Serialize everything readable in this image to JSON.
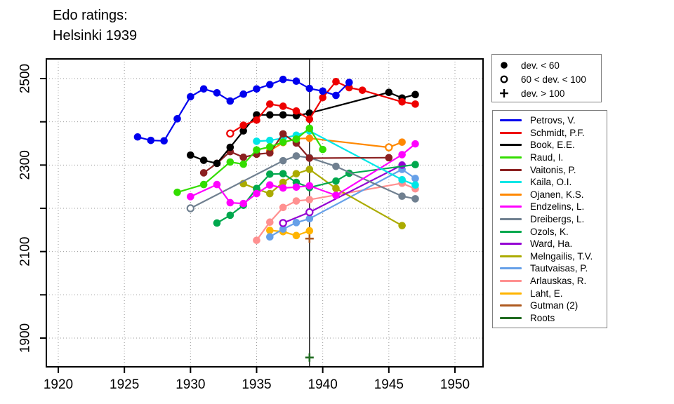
{
  "title": {
    "line1": "Edo ratings:",
    "line2": "Helsinki 1939"
  },
  "marker_legend": {
    "items": [
      {
        "marker": "filled-circle",
        "label": "dev. < 60"
      },
      {
        "marker": "open-circle",
        "label": "60 < dev. < 100"
      },
      {
        "marker": "plus",
        "label": "dev. > 100"
      }
    ]
  },
  "chart_data": {
    "type": "line",
    "title": "Edo ratings: Helsinki 1939",
    "xlabel": "",
    "ylabel": "",
    "xlim": [
      1919,
      1952
    ],
    "ylim": [
      1830,
      2545
    ],
    "x_ticks": [
      1920,
      1925,
      1930,
      1935,
      1940,
      1945,
      1950
    ],
    "y_ticks_all": [
      1900,
      2000,
      2100,
      2200,
      2300,
      2400,
      2500
    ],
    "y_ticks_labeled": [
      1900,
      2100,
      2300,
      2500
    ],
    "grid": true,
    "grid_color": "#999999",
    "axis_color": "#000000",
    "reference_line_x": 1939,
    "legend_position": "right",
    "point_format": [
      "year",
      "rating",
      "marker: f=filled (dev.<60), o=open (60<dev.<100), p=plus (dev.>100); default f"
    ],
    "series": [
      {
        "name": "Petrovs, V.",
        "color": "#0000EE",
        "points": [
          [
            1926,
            2365
          ],
          [
            1927,
            2357
          ],
          [
            1928,
            2356
          ],
          [
            1929,
            2407
          ],
          [
            1930,
            2458
          ],
          [
            1931,
            2476
          ],
          [
            1932,
            2467
          ],
          [
            1933,
            2448
          ],
          [
            1934,
            2464
          ],
          [
            1935,
            2476
          ],
          [
            1936,
            2486
          ],
          [
            1937,
            2498
          ],
          [
            1938,
            2494
          ],
          [
            1939,
            2477
          ],
          [
            1940,
            2471
          ],
          [
            1941,
            2461
          ],
          [
            1942,
            2491
          ]
        ]
      },
      {
        "name": "Schmidt, P.F.",
        "color": "#EE0000",
        "points": [
          [
            1933,
            2373,
            "o"
          ],
          [
            1934,
            2392
          ],
          [
            1935,
            2404
          ],
          [
            1936,
            2441
          ],
          [
            1937,
            2436
          ],
          [
            1938,
            2425
          ],
          [
            1939,
            2406
          ],
          [
            1940,
            2456
          ],
          [
            1941,
            2493
          ],
          [
            1942,
            2479
          ],
          [
            1943,
            2473
          ],
          [
            1946,
            2446
          ],
          [
            1947,
            2441
          ]
        ]
      },
      {
        "name": "Book, E.E.",
        "color": "#000000",
        "points": [
          [
            1930,
            2323
          ],
          [
            1931,
            2311
          ],
          [
            1932,
            2304
          ],
          [
            1933,
            2341
          ],
          [
            1934,
            2379
          ],
          [
            1935,
            2416
          ],
          [
            1936,
            2416
          ],
          [
            1937,
            2416
          ],
          [
            1938,
            2414
          ],
          [
            1939,
            2420
          ],
          [
            1945,
            2468
          ],
          [
            1946,
            2455
          ],
          [
            1947,
            2463
          ]
        ]
      },
      {
        "name": "Raud, I.",
        "color": "#33DD00",
        "points": [
          [
            1929,
            2237
          ],
          [
            1931,
            2255
          ],
          [
            1933,
            2307
          ],
          [
            1934,
            2302
          ],
          [
            1935,
            2335
          ],
          [
            1936,
            2342
          ],
          [
            1937,
            2353
          ],
          [
            1938,
            2360
          ],
          [
            1939,
            2385
          ],
          [
            1940,
            2336
          ]
        ]
      },
      {
        "name": "Vaitonis, P.",
        "color": "#8B2020",
        "points": [
          [
            1931,
            2282
          ],
          [
            1932,
            2304
          ],
          [
            1933,
            2331
          ],
          [
            1934,
            2318
          ],
          [
            1935,
            2325
          ],
          [
            1936,
            2328
          ],
          [
            1937,
            2372
          ],
          [
            1938,
            2351
          ],
          [
            1939,
            2316
          ],
          [
            1945,
            2317
          ]
        ]
      },
      {
        "name": "Kaila, O.I.",
        "color": "#00E6E6",
        "points": [
          [
            1935,
            2355
          ],
          [
            1936,
            2357
          ],
          [
            1937,
            2362
          ],
          [
            1938,
            2369
          ],
          [
            1939,
            2379
          ],
          [
            1946,
            2266
          ],
          [
            1947,
            2254
          ]
        ]
      },
      {
        "name": "Ojanen, K.S.",
        "color": "#FF8800",
        "points": [
          [
            1936,
            2333
          ],
          [
            1937,
            2352
          ],
          [
            1938,
            2361
          ],
          [
            1939,
            2362
          ],
          [
            1945,
            2341,
            "o"
          ],
          [
            1946,
            2353
          ]
        ]
      },
      {
        "name": "Endzelins, L.",
        "color": "#FF00FF",
        "points": [
          [
            1930,
            2227
          ],
          [
            1932,
            2255
          ],
          [
            1933,
            2213
          ],
          [
            1934,
            2211
          ],
          [
            1935,
            2234
          ],
          [
            1936,
            2254
          ],
          [
            1937,
            2247
          ],
          [
            1938,
            2249
          ],
          [
            1939,
            2252
          ],
          [
            1941,
            2230
          ],
          [
            1946,
            2324
          ],
          [
            1947,
            2349
          ]
        ]
      },
      {
        "name": "Dreibergs, L.",
        "color": "#708090",
        "points": [
          [
            1930,
            2200,
            "o"
          ],
          [
            1937,
            2310
          ],
          [
            1938,
            2321
          ],
          [
            1939,
            2317
          ],
          [
            1941,
            2297
          ],
          [
            1946,
            2228
          ],
          [
            1947,
            2222
          ]
        ]
      },
      {
        "name": "Ozols, K.",
        "color": "#00A84D",
        "points": [
          [
            1932,
            2166
          ],
          [
            1933,
            2184
          ],
          [
            1934,
            2207
          ],
          [
            1935,
            2246
          ],
          [
            1936,
            2279
          ],
          [
            1937,
            2280
          ],
          [
            1938,
            2260
          ],
          [
            1939,
            2248
          ],
          [
            1941,
            2263
          ],
          [
            1942,
            2281
          ],
          [
            1947,
            2301
          ]
        ]
      },
      {
        "name": "Ward, Ha.",
        "color": "#9400D3",
        "points": [
          [
            1937,
            2166,
            "o"
          ],
          [
            1939,
            2191,
            "o"
          ],
          [
            1946,
            2300
          ]
        ]
      },
      {
        "name": "Melngailis, T.V.",
        "color": "#ABAB00",
        "points": [
          [
            1934,
            2257
          ],
          [
            1935,
            2245
          ],
          [
            1936,
            2234
          ],
          [
            1937,
            2260
          ],
          [
            1938,
            2280
          ],
          [
            1939,
            2290
          ],
          [
            1941,
            2246
          ],
          [
            1946,
            2160
          ]
        ]
      },
      {
        "name": "Tautvaisas, P.",
        "color": "#66A0E8",
        "points": [
          [
            1936,
            2134
          ],
          [
            1937,
            2152
          ],
          [
            1938,
            2167
          ],
          [
            1939,
            2176
          ],
          [
            1946,
            2290
          ],
          [
            1947,
            2269
          ]
        ]
      },
      {
        "name": "Arlauskas, R.",
        "color": "#FF9090",
        "points": [
          [
            1935,
            2126
          ],
          [
            1936,
            2168
          ],
          [
            1937,
            2202
          ],
          [
            1938,
            2217
          ],
          [
            1939,
            2220
          ],
          [
            1946,
            2258
          ],
          [
            1947,
            2245
          ]
        ]
      },
      {
        "name": "Laht, E.",
        "color": "#FFB400",
        "points": [
          [
            1936,
            2149
          ],
          [
            1937,
            2146
          ],
          [
            1938,
            2137
          ],
          [
            1939,
            2148
          ]
        ]
      },
      {
        "name": "Gutman (2)",
        "color": "#AE5A1F",
        "points": [
          [
            1939,
            2130,
            "p"
          ]
        ]
      },
      {
        "name": "Roots",
        "color": "#206B20",
        "points": [
          [
            1939,
            1855,
            "p"
          ]
        ]
      }
    ]
  }
}
